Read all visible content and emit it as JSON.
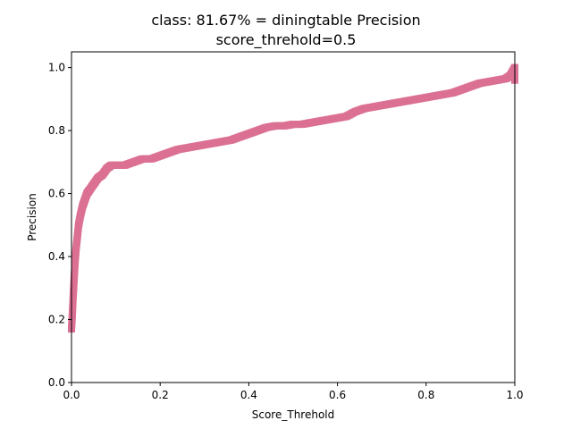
{
  "chart_data": {
    "type": "scatter",
    "title_line1": "class: 81.67% = diningtable Precision",
    "title_line2": "score_threhold=0.5",
    "xlabel": "Score_Threhold",
    "ylabel": "Precision",
    "xlim": [
      0.0,
      1.0
    ],
    "ylim": [
      0.0,
      1.05
    ],
    "xticks": [
      "0.0",
      "0.2",
      "0.4",
      "0.6",
      "0.8",
      "1.0"
    ],
    "yticks": [
      "0.0",
      "0.2",
      "0.4",
      "0.6",
      "0.8",
      "1.0"
    ],
    "grid": false,
    "series_color": "#db7093",
    "marker": "square",
    "x": [
      0.0,
      0.002,
      0.004,
      0.006,
      0.008,
      0.01,
      0.013,
      0.016,
      0.02,
      0.025,
      0.03,
      0.035,
      0.04,
      0.05,
      0.06,
      0.07,
      0.08,
      0.09,
      0.1,
      0.12,
      0.14,
      0.16,
      0.18,
      0.2,
      0.22,
      0.24,
      0.26,
      0.28,
      0.3,
      0.32,
      0.34,
      0.36,
      0.38,
      0.4,
      0.42,
      0.44,
      0.46,
      0.48,
      0.5,
      0.52,
      0.54,
      0.56,
      0.58,
      0.6,
      0.62,
      0.64,
      0.66,
      0.68,
      0.7,
      0.72,
      0.74,
      0.76,
      0.78,
      0.8,
      0.82,
      0.84,
      0.86,
      0.88,
      0.9,
      0.92,
      0.94,
      0.96,
      0.98,
      0.99,
      1.0
    ],
    "y": [
      0.17,
      0.22,
      0.28,
      0.33,
      0.38,
      0.42,
      0.46,
      0.5,
      0.53,
      0.56,
      0.58,
      0.6,
      0.61,
      0.63,
      0.65,
      0.66,
      0.68,
      0.69,
      0.69,
      0.69,
      0.7,
      0.71,
      0.71,
      0.72,
      0.73,
      0.74,
      0.745,
      0.75,
      0.755,
      0.76,
      0.765,
      0.77,
      0.78,
      0.79,
      0.8,
      0.81,
      0.815,
      0.815,
      0.82,
      0.82,
      0.825,
      0.83,
      0.835,
      0.84,
      0.845,
      0.86,
      0.87,
      0.875,
      0.88,
      0.885,
      0.89,
      0.895,
      0.9,
      0.905,
      0.91,
      0.915,
      0.92,
      0.93,
      0.94,
      0.95,
      0.955,
      0.96,
      0.965,
      0.975,
      1.0
    ]
  }
}
